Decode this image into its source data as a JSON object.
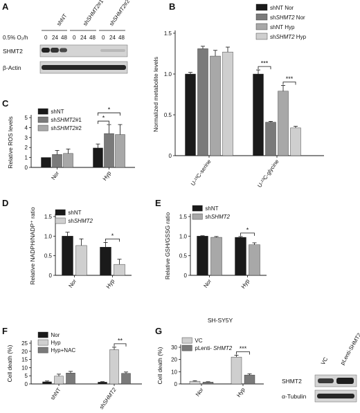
{
  "colors": {
    "c1": "#1a1a1a",
    "c2": "#7a7a7a",
    "c3": "#a8a8a8",
    "c4": "#cfcfcf",
    "blot_bg": "#d6d6d6"
  },
  "panels": {
    "A": {
      "label": "A",
      "condition_label": "0.5% O₂/h",
      "groups": [
        "shNT",
        "shSHMT2#1",
        "shSHMT2#2"
      ],
      "timepoints": [
        "0",
        "24",
        "48",
        "0",
        "24",
        "48",
        "0",
        "24",
        "48"
      ],
      "rows": [
        "SHMT2",
        "β-Actin"
      ]
    },
    "G_blot": {
      "lanes": [
        "VC",
        "pLenti-SHMT2"
      ],
      "rows": [
        "SHMT2",
        "α-Tubulin"
      ]
    }
  },
  "chart_data": [
    {
      "id": "B",
      "label": "B",
      "type": "bar",
      "ylabel": "Normalized metabolite levels",
      "yticks": [
        "0",
        "0.5",
        "1.0",
        "1.5"
      ],
      "ylim": [
        0,
        1.5
      ],
      "categories": [
        "U-¹³C-serine",
        "U-¹³C-glycine"
      ],
      "series": [
        {
          "name": "shNT Nor",
          "color": "c1",
          "values": [
            1.0,
            1.0
          ],
          "err": [
            0.02,
            0.05
          ]
        },
        {
          "name": "shSHMT2 Nor",
          "color": "c2",
          "values": [
            1.31,
            0.41
          ],
          "err": [
            0.03,
            0.01
          ]
        },
        {
          "name": "shNT Hyp",
          "color": "c3",
          "values": [
            1.22,
            0.79
          ],
          "err": [
            0.07,
            0.07
          ]
        },
        {
          "name": "shSHMT2 Hyp",
          "color": "c4",
          "values": [
            1.27,
            0.34
          ],
          "err": [
            0.06,
            0.02
          ]
        }
      ],
      "significance": [
        {
          "text": "***",
          "cat": 1,
          "from": 0,
          "to": 1
        },
        {
          "text": "***",
          "cat": 1,
          "from": 2,
          "to": 3
        }
      ]
    },
    {
      "id": "C",
      "label": "C",
      "type": "bar",
      "ylabel": "Relative ROS levels",
      "yticks": [
        "0",
        "1",
        "2",
        "3",
        "4",
        "5"
      ],
      "ylim": [
        0,
        5
      ],
      "categories": [
        "Nor",
        "Hyp"
      ],
      "series": [
        {
          "name": "shNT",
          "color": "c1",
          "values": [
            1.0,
            1.95
          ],
          "err": [
            0.0,
            0.4
          ]
        },
        {
          "name": "shSHMT2#1",
          "color": "c2",
          "values": [
            1.3,
            3.4
          ],
          "err": [
            0.4,
            0.9
          ]
        },
        {
          "name": "shSHMT2#2",
          "color": "c3",
          "values": [
            1.4,
            3.3
          ],
          "err": [
            0.45,
            1.0
          ]
        }
      ],
      "significance": [
        {
          "text": "*",
          "cat": 1,
          "from": 0,
          "to": 1
        },
        {
          "text": "*",
          "cat": 1,
          "from": 0,
          "to": 2
        }
      ]
    },
    {
      "id": "D",
      "label": "D",
      "type": "bar",
      "ylabel": "Relative NADPH/NADP⁺ ratio",
      "yticks": [
        "0",
        "0.5",
        "1.0",
        "1.5"
      ],
      "ylim": [
        0,
        1.5
      ],
      "categories": [
        "Nor",
        "Hyp"
      ],
      "series": [
        {
          "name": "shNT",
          "color": "c1",
          "values": [
            1.0,
            0.72
          ],
          "err": [
            0.1,
            0.12
          ]
        },
        {
          "name": "shSHMT2",
          "color": "c4",
          "values": [
            0.76,
            0.28
          ],
          "err": [
            0.17,
            0.13
          ]
        }
      ],
      "significance": [
        {
          "text": "*",
          "cat": 1,
          "from": 0,
          "to": 1
        }
      ]
    },
    {
      "id": "E",
      "label": "E",
      "type": "bar",
      "ylabel": "Relative GSH/GSSG ratio",
      "yticks": [
        "0",
        "0.5",
        "1.0",
        "1.5"
      ],
      "ylim": [
        0,
        1.5
      ],
      "categories": [
        "Nor",
        "Hyp"
      ],
      "series": [
        {
          "name": "shNT",
          "color": "c1",
          "values": [
            1.0,
            0.97
          ],
          "err": [
            0.01,
            0.02
          ]
        },
        {
          "name": "shSHMT2",
          "color": "c3",
          "values": [
            0.97,
            0.78
          ],
          "err": [
            0.02,
            0.05
          ]
        }
      ],
      "significance": [
        {
          "text": "*",
          "cat": 1,
          "from": 0,
          "to": 1
        }
      ]
    },
    {
      "id": "F",
      "label": "F",
      "type": "bar",
      "ylabel": "Cell death (%)",
      "yticks": [
        "0",
        "5",
        "10",
        "15",
        "20",
        "25"
      ],
      "ylim": [
        0,
        25
      ],
      "categories": [
        "shNT",
        "shSHMT2"
      ],
      "series": [
        {
          "name": "Nor",
          "color": "c1",
          "values": [
            1.3,
            1.1
          ],
          "err": [
            0.5,
            0.3
          ]
        },
        {
          "name": "Hyp",
          "color": "c4",
          "values": [
            4.8,
            21.0
          ],
          "err": [
            1.2,
            1.5
          ]
        },
        {
          "name": "Hyp+NAC",
          "color": "c2",
          "values": [
            6.7,
            6.5
          ],
          "err": [
            1.0,
            0.8
          ]
        }
      ],
      "significance": [
        {
          "text": "**",
          "cat": 1,
          "from": 1,
          "to": 2
        }
      ]
    },
    {
      "id": "G",
      "label": "G",
      "type": "bar",
      "title": "SH-SY5Y",
      "ylabel": "Cell death (%)",
      "yticks": [
        "0",
        "10",
        "20",
        "30"
      ],
      "ylim": [
        0,
        30
      ],
      "categories": [
        "Nor",
        "Hyp"
      ],
      "series": [
        {
          "name": "VC",
          "color": "c4",
          "values": [
            2.2,
            22.0
          ],
          "err": [
            0.4,
            1.5
          ]
        },
        {
          "name": "pLenti- SHMT2",
          "color": "c2",
          "values": [
            1.5,
            7.3
          ],
          "err": [
            0.3,
            1.0
          ]
        }
      ],
      "significance": [
        {
          "text": "***",
          "cat": 1,
          "from": 0,
          "to": 1
        }
      ]
    }
  ]
}
